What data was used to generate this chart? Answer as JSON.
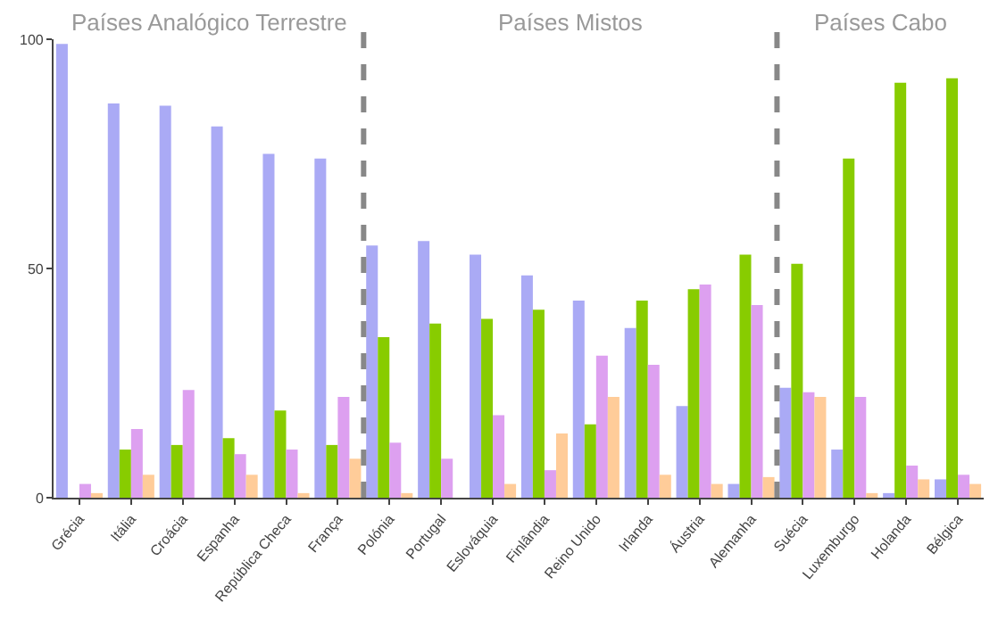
{
  "chart_data": {
    "type": "bar",
    "categories": [
      "Grécia",
      "Itália",
      "Croácia",
      "Espanha",
      "República Checa",
      "França",
      "Polónia",
      "Portugal",
      "Eslováquia",
      "Finlândia",
      "Reino Unido",
      "Irlanda",
      "Áustria",
      "Alemanha",
      "Suécia",
      "Luxemburgo",
      "Holanda",
      "Bélgica"
    ],
    "series": [
      {
        "color": "#aaaaf5",
        "values": [
          99,
          86,
          85.5,
          81,
          75,
          74,
          55,
          56,
          53,
          48.5,
          43,
          37,
          20,
          3,
          24,
          10.5,
          1,
          4
        ]
      },
      {
        "color": "#88cc00",
        "values": [
          0,
          10.5,
          11.5,
          13,
          19,
          11.5,
          35,
          38,
          39,
          41,
          16,
          43,
          45.5,
          53,
          51,
          74,
          90.5,
          91.5
        ]
      },
      {
        "color": "#dda0f0",
        "values": [
          3,
          15,
          23.5,
          9.5,
          10.5,
          22,
          12,
          8.5,
          18,
          6,
          31,
          29,
          46.5,
          42,
          23,
          22,
          7,
          5
        ]
      },
      {
        "color": "#ffcc99",
        "values": [
          1,
          5,
          0,
          5,
          1,
          8.5,
          1,
          0,
          3,
          14,
          22,
          5,
          3,
          4.5,
          22,
          1,
          4,
          3
        ]
      }
    ],
    "ylim": [
      0,
      100
    ],
    "yticks": [
      0,
      50,
      100
    ],
    "annotations": [
      "Países Analógico Terrestre",
      "Países Mistos",
      "Países Cabo"
    ]
  }
}
